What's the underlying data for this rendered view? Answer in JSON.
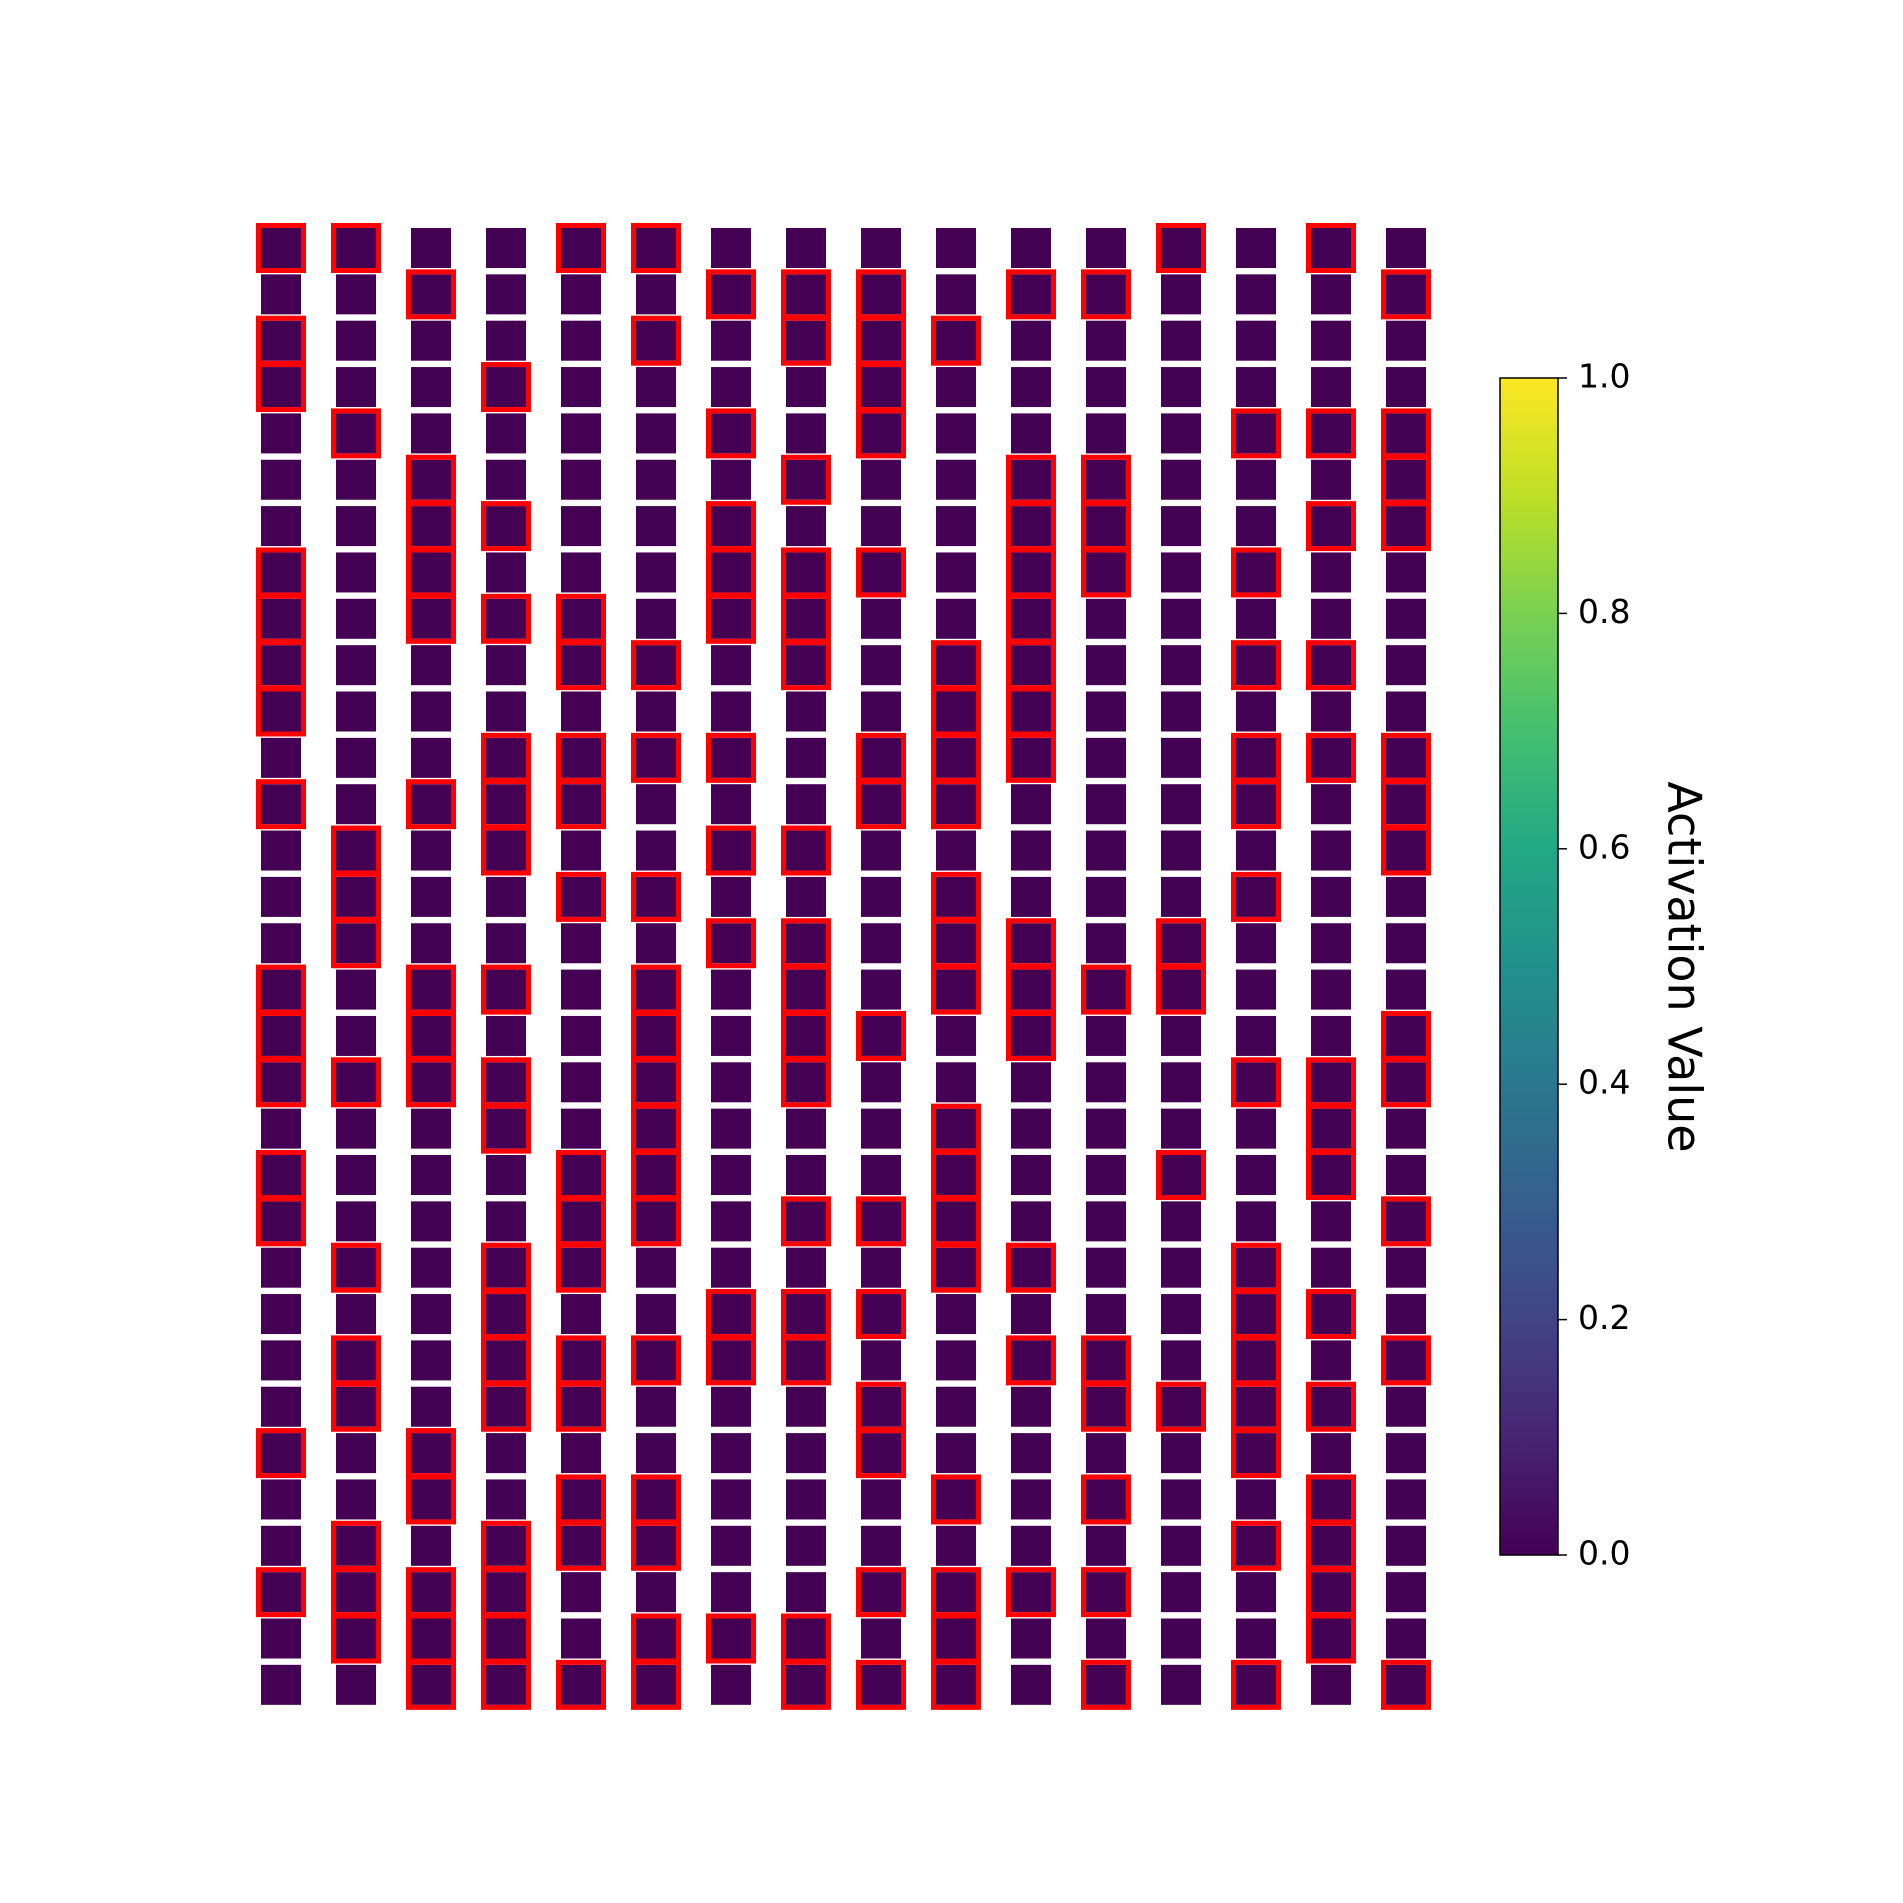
{
  "chart_data": {
    "type": "heatmap_grid",
    "cmap": "viridis",
    "tile_color": "#440154",
    "highlight_color": "#ff0000",
    "highlighted": [
      [
        1,
        1,
        0,
        0,
        1,
        1,
        0,
        0,
        0,
        0,
        0,
        0,
        1,
        0,
        1,
        0
      ],
      [
        0,
        0,
        1,
        0,
        0,
        0,
        1,
        1,
        1,
        0,
        1,
        1,
        0,
        0,
        0,
        1
      ],
      [
        1,
        0,
        0,
        0,
        0,
        1,
        0,
        1,
        1,
        1,
        0,
        0,
        0,
        0,
        0,
        0
      ],
      [
        1,
        0,
        0,
        1,
        0,
        0,
        0,
        0,
        1,
        0,
        0,
        0,
        0,
        0,
        0,
        0
      ],
      [
        0,
        1,
        0,
        0,
        0,
        0,
        1,
        0,
        1,
        0,
        0,
        0,
        0,
        1,
        1,
        1
      ],
      [
        0,
        0,
        1,
        0,
        0,
        0,
        0,
        1,
        0,
        0,
        1,
        1,
        0,
        0,
        0,
        1
      ],
      [
        0,
        0,
        1,
        1,
        0,
        0,
        1,
        0,
        0,
        0,
        1,
        1,
        0,
        0,
        1,
        1
      ],
      [
        1,
        0,
        1,
        0,
        0,
        0,
        1,
        1,
        1,
        0,
        1,
        1,
        0,
        1,
        0,
        0
      ],
      [
        1,
        0,
        1,
        1,
        1,
        0,
        1,
        1,
        0,
        0,
        1,
        0,
        0,
        0,
        0,
        0
      ],
      [
        1,
        0,
        0,
        0,
        1,
        1,
        0,
        1,
        0,
        1,
        1,
        0,
        0,
        1,
        1,
        0
      ],
      [
        1,
        0,
        0,
        0,
        0,
        0,
        0,
        0,
        0,
        1,
        1,
        0,
        0,
        0,
        0,
        0
      ],
      [
        0,
        0,
        0,
        1,
        1,
        1,
        1,
        0,
        1,
        1,
        1,
        0,
        0,
        1,
        1,
        1
      ],
      [
        1,
        0,
        1,
        1,
        1,
        0,
        0,
        0,
        1,
        1,
        0,
        0,
        0,
        1,
        0,
        1
      ],
      [
        0,
        1,
        0,
        1,
        0,
        0,
        1,
        1,
        0,
        0,
        0,
        0,
        0,
        0,
        0,
        1
      ],
      [
        0,
        1,
        0,
        0,
        1,
        1,
        0,
        0,
        0,
        1,
        0,
        0,
        0,
        1,
        0,
        0
      ],
      [
        0,
        1,
        0,
        0,
        0,
        0,
        1,
        1,
        0,
        1,
        1,
        0,
        1,
        0,
        0,
        0
      ],
      [
        1,
        0,
        1,
        1,
        0,
        1,
        0,
        1,
        0,
        1,
        1,
        1,
        1,
        0,
        0,
        0
      ],
      [
        1,
        0,
        1,
        0,
        0,
        1,
        0,
        1,
        1,
        0,
        1,
        0,
        0,
        0,
        0,
        1
      ],
      [
        1,
        1,
        1,
        1,
        0,
        1,
        0,
        1,
        0,
        0,
        0,
        0,
        0,
        1,
        1,
        1
      ],
      [
        0,
        0,
        0,
        1,
        0,
        1,
        0,
        0,
        0,
        1,
        0,
        0,
        0,
        0,
        1,
        0
      ],
      [
        1,
        0,
        0,
        0,
        1,
        1,
        0,
        0,
        0,
        1,
        0,
        0,
        1,
        0,
        1,
        0
      ],
      [
        1,
        0,
        0,
        0,
        1,
        1,
        0,
        1,
        1,
        1,
        0,
        0,
        0,
        0,
        0,
        1
      ],
      [
        0,
        1,
        0,
        1,
        1,
        0,
        0,
        0,
        0,
        1,
        1,
        0,
        0,
        1,
        0,
        0
      ],
      [
        0,
        0,
        0,
        1,
        0,
        0,
        1,
        1,
        1,
        0,
        0,
        0,
        0,
        1,
        1,
        0
      ],
      [
        0,
        1,
        0,
        1,
        1,
        1,
        1,
        1,
        0,
        0,
        1,
        1,
        0,
        1,
        0,
        1
      ],
      [
        0,
        1,
        0,
        1,
        1,
        0,
        0,
        0,
        1,
        0,
        0,
        1,
        1,
        1,
        1,
        0
      ],
      [
        1,
        0,
        1,
        0,
        0,
        0,
        0,
        0,
        1,
        0,
        0,
        0,
        0,
        1,
        0,
        0
      ],
      [
        0,
        0,
        1,
        0,
        1,
        1,
        0,
        0,
        0,
        1,
        0,
        1,
        0,
        0,
        1,
        0
      ],
      [
        0,
        1,
        0,
        1,
        1,
        1,
        0,
        0,
        0,
        0,
        0,
        0,
        0,
        1,
        1,
        0
      ],
      [
        1,
        1,
        1,
        1,
        0,
        0,
        0,
        0,
        1,
        1,
        1,
        1,
        0,
        0,
        1,
        0
      ],
      [
        0,
        1,
        1,
        1,
        0,
        1,
        1,
        1,
        0,
        1,
        0,
        0,
        0,
        0,
        1,
        0
      ],
      [
        0,
        0,
        1,
        1,
        1,
        1,
        0,
        1,
        1,
        1,
        0,
        1,
        0,
        1,
        0,
        1
      ]
    ],
    "colorbar": {
      "label": "Activation Value",
      "lim": [
        0,
        1
      ],
      "ticks": [
        {
          "value": 0,
          "label": "0.0"
        },
        0.2,
        0.4,
        0.6,
        0.8,
        {
          "value": 1,
          "label": "1.0"
        }
      ]
    }
  }
}
